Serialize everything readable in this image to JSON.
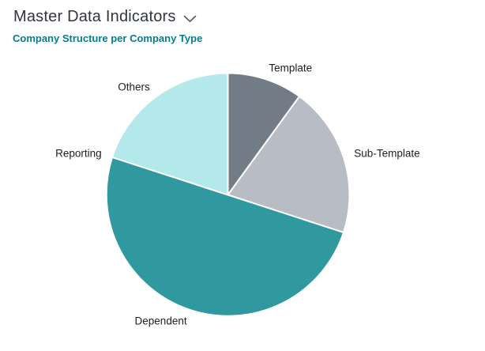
{
  "page": {
    "background": "#ffffff"
  },
  "header": {
    "title": "Master Data Indicators",
    "chevron_icon": "chevron-down",
    "title_color": "#31363c"
  },
  "chart": {
    "title": "Company Structure per Company Type",
    "title_color": "#077c8c"
  },
  "chart_data": {
    "type": "pie",
    "title": "Company Structure per Company Type",
    "start_angle_deg": 0,
    "direction": "clockwise",
    "labels_position": "outside",
    "legend": "none",
    "slices": [
      {
        "label": "Template",
        "percent": 10,
        "color": "#717c87"
      },
      {
        "label": "Sub-Template",
        "percent": 20,
        "color": "#b8bcc4"
      },
      {
        "label": "Dependent",
        "percent": 50,
        "color": "#30989f"
      },
      {
        "label": "Reporting",
        "percent": 0,
        "color": null
      },
      {
        "label": "Others",
        "percent": 20,
        "color": "#b4e9ec"
      }
    ]
  }
}
